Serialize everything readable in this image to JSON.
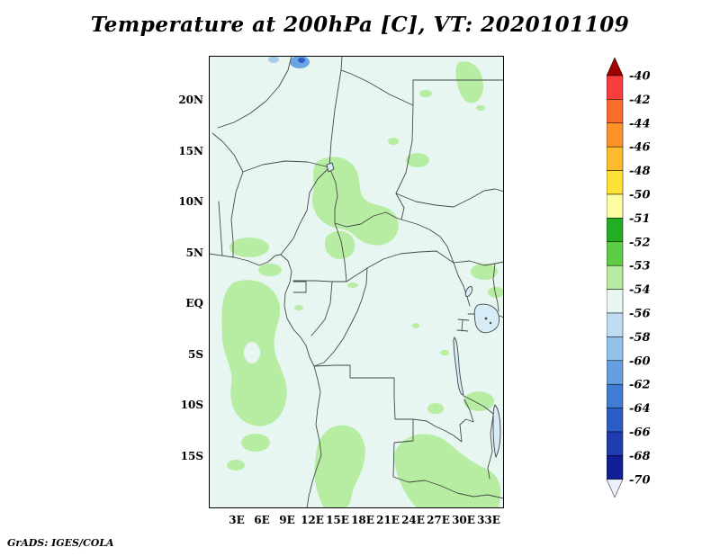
{
  "title": "Temperature at 200hPa [C], VT: 2020101109",
  "footer": "GrADS: IGES/COLA",
  "map": {
    "lat_labels": [
      "20N",
      "15N",
      "10N",
      "5N",
      "EQ",
      "5S",
      "10S",
      "15S"
    ],
    "lon_labels": [
      "3E",
      "6E",
      "9E",
      "12E",
      "15E",
      "18E",
      "21E",
      "24E",
      "27E",
      "30E",
      "33E"
    ]
  },
  "colorbar": {
    "labels": [
      "-40",
      "-42",
      "-44",
      "-46",
      "-48",
      "-50",
      "-51",
      "-52",
      "-53",
      "-54",
      "-56",
      "-58",
      "-60",
      "-62",
      "-64",
      "-66",
      "-68",
      "-70"
    ],
    "colors": [
      "#9e0000",
      "#f93c3c",
      "#fb6b2c",
      "#ff9129",
      "#ffbb2e",
      "#ffe136",
      "#fdfda2",
      "#22ad22",
      "#5ecc45",
      "#b6eda2",
      "#e8f6f1",
      "#bfdcf2",
      "#92c1ea",
      "#659fdf",
      "#417cd4",
      "#2c5cc5",
      "#1f3cb0",
      "#101f96",
      "#eef0fb"
    ]
  },
  "colors": {
    "background": "#ffffff",
    "field_base": "#e8f6f1",
    "shade_green": "#b6eda2",
    "cold_blue": "#6aa5e2",
    "cold_blue_dark": "#2c5cc5",
    "cold_blue_light": "#a8cdef",
    "lake_fill": "#d8ecf7",
    "border_line": "#454a44"
  }
}
